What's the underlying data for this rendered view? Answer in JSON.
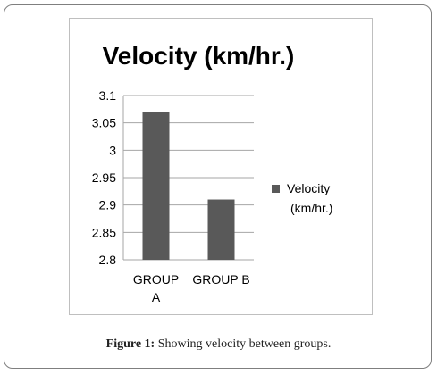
{
  "chart_data": {
    "type": "bar",
    "title": "Velocity (km/hr.)",
    "categories": [
      "GROUP A",
      "GROUP B"
    ],
    "category_lines": [
      [
        "GROUP",
        "A"
      ],
      [
        "GROUP B"
      ]
    ],
    "series": [
      {
        "name": "Velocity (km/hr.)",
        "values": [
          3.07,
          2.91
        ]
      }
    ],
    "legend_lines": [
      "Velocity",
      "(km/hr.)"
    ],
    "legend_position": "right",
    "ylim": [
      2.8,
      3.1
    ],
    "yticks": [
      2.8,
      2.85,
      2.9,
      2.95,
      3.0,
      3.05,
      3.1
    ],
    "ytick_labels": [
      "2.8",
      "2.85",
      "2.9",
      "2.95",
      "3",
      "3.05",
      "3.1"
    ],
    "xlabel": "",
    "ylabel": "",
    "grid": true,
    "bar_color": "#595959",
    "grid_color": "#a6a6a6"
  },
  "caption": {
    "label": "Figure 1:",
    "text": " Showing velocity between groups."
  }
}
